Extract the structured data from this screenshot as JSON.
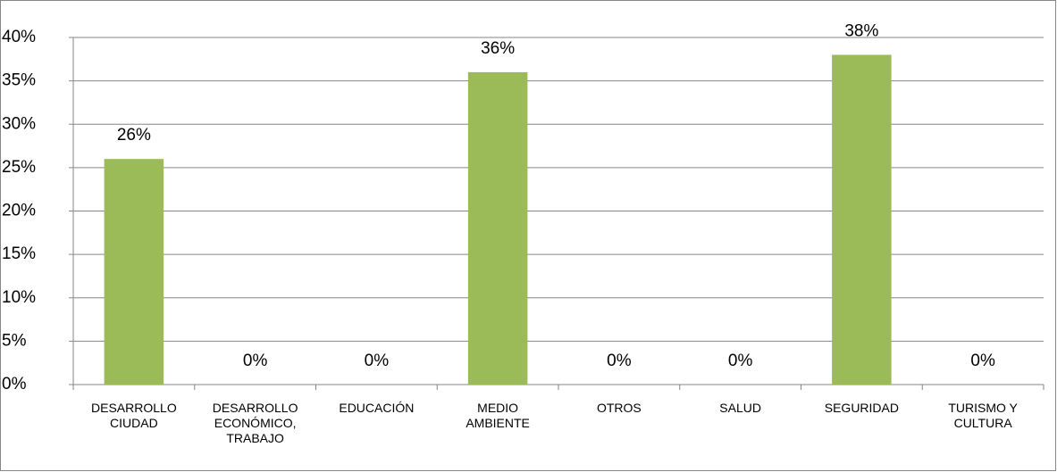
{
  "chart_data": {
    "type": "bar",
    "categories": [
      "DESARROLLO CIUDAD",
      "DESARROLLO ECONÓMICO, TRABAJO",
      "EDUCACIÓN",
      "MEDIO AMBIENTE",
      "OTROS",
      "SALUD",
      "SEGURIDAD",
      "TURISMO Y CULTURA"
    ],
    "values": [
      26,
      0,
      0,
      36,
      0,
      0,
      38,
      0
    ],
    "value_labels": [
      "26%",
      "0%",
      "0%",
      "36%",
      "0%",
      "0%",
      "38%",
      "0%"
    ],
    "color": "#9bbb59",
    "ylim": [
      0,
      40
    ],
    "yticks": [
      {
        "value": 0,
        "label": "0%"
      },
      {
        "value": 5,
        "label": "5%"
      },
      {
        "value": 10,
        "label": "10%"
      },
      {
        "value": 15,
        "label": "15%"
      },
      {
        "value": 20,
        "label": "20%"
      },
      {
        "value": 25,
        "label": "25%"
      },
      {
        "value": 30,
        "label": "30%"
      },
      {
        "value": 35,
        "label": "35%"
      },
      {
        "value": 40,
        "label": "40%"
      }
    ],
    "grid": true
  }
}
